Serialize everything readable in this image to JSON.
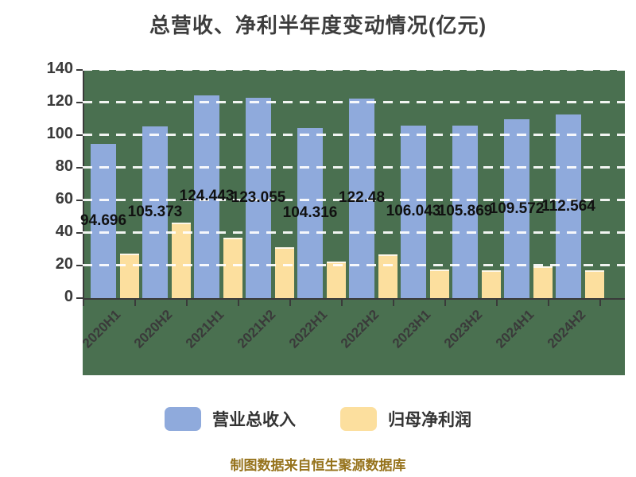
{
  "title": "总营收、净利半年度变动情况(亿元)",
  "footer": "制图数据来自恒生聚源数据库",
  "legend": {
    "items": [
      {
        "label": "营业总收入",
        "color": "#8FAADC"
      },
      {
        "label": "归母净利润",
        "color": "#FCDF9E"
      }
    ]
  },
  "colors": {
    "plot_background": "#4A7050",
    "revenue_bar": "#8FAADC",
    "profit_bar": "#FCDF9E",
    "axis": "#3a3a3a",
    "title_text": "#3d3d3d",
    "data_label_text": "#111111",
    "footer_text": "#96731C",
    "gridline": "#ffffff"
  },
  "chart_data": {
    "type": "bar",
    "title": "总营收、净利半年度变动情况(亿元)",
    "categories": [
      "2020H1",
      "2020H2",
      "2021H1",
      "2021H2",
      "2022H1",
      "2022H2",
      "2023H1",
      "2023H2",
      "2024H1",
      "2024H2"
    ],
    "series": [
      {
        "name": "营业总收入",
        "color": "#8FAADC",
        "values": [
          94.696,
          105.373,
          124.443,
          123.055,
          104.316,
          122.48,
          106.043,
          105.869,
          109.572,
          112.564
        ],
        "display_labels": [
          "94.696",
          "105.373",
          "124.443",
          "123.055",
          "104.316",
          "122.48",
          "106.043",
          "105.869",
          "109.572",
          "112.564"
        ],
        "labels_shown": true
      },
      {
        "name": "归母净利润",
        "color": "#FCDF9E",
        "values": [
          27.5,
          46.5,
          37,
          31,
          22.5,
          27,
          17.5,
          17,
          19.5,
          17
        ],
        "labels_shown": false
      }
    ],
    "xlabel": "",
    "ylabel": "",
    "ylim": [
      0,
      140
    ],
    "yticks": [
      0,
      20,
      40,
      60,
      80,
      100,
      120,
      140
    ],
    "x_tick_rotation": 45,
    "grid": "horizontal-dashed",
    "legend_position": "bottom"
  }
}
